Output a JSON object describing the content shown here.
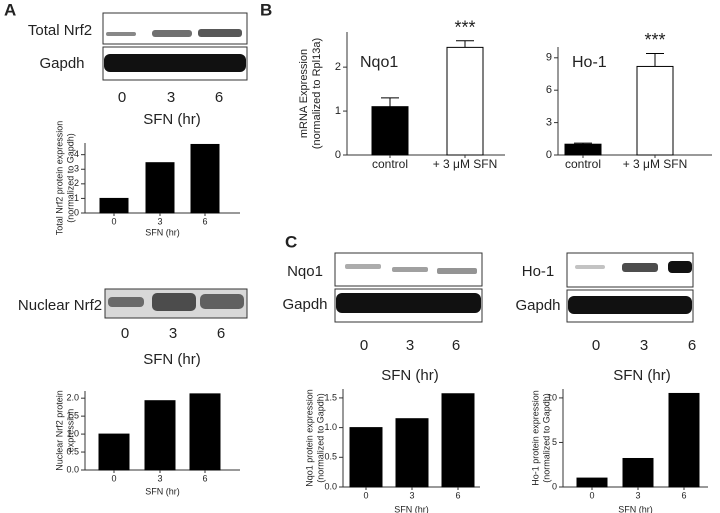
{
  "panel_labels": [
    "A",
    "B",
    "C"
  ],
  "blots": [
    {
      "labels": [
        "Total Nrf2",
        "Gapdh"
      ],
      "lanes": [
        "0",
        "3",
        "6"
      ],
      "xlabel": "SFN (hr)"
    },
    {
      "labels": [
        "Nuclear Nrf2"
      ],
      "lanes": [
        "0",
        "3",
        "6"
      ],
      "xlabel": "SFN (hr)"
    },
    {
      "labels": [
        "Nqo1",
        "Gapdh"
      ],
      "lanes": [
        "0",
        "3",
        "6"
      ],
      "xlabel": "SFN (hr)"
    },
    {
      "labels": [
        "Ho-1",
        "Gapdh"
      ],
      "lanes": [
        "0",
        "3",
        "6"
      ],
      "xlabel": "SFN (hr)"
    }
  ],
  "chart_data": [
    {
      "type": "bar",
      "categories": [
        "0",
        "3",
        "6"
      ],
      "values": [
        1,
        3.45,
        4.7
      ],
      "color": "#000000",
      "ylabel": [
        "Total Nrf2 protein expression",
        "(normalized to Gapdh)"
      ],
      "xlabel": "SFN (hr)",
      "ylim": [
        0,
        4.8
      ],
      "yticks": [
        0,
        1,
        2,
        3,
        4
      ]
    },
    {
      "type": "bar",
      "categories": [
        "0",
        "3",
        "6"
      ],
      "values": [
        1,
        1.93,
        2.12
      ],
      "color": "#000000",
      "ylabel": [
        "Nuclear Nrf2 protein",
        "expression"
      ],
      "xlabel": "SFN (hr)",
      "ylim": [
        0,
        2.2
      ],
      "yticks": [
        {
          "value": 0,
          "label": "0.0"
        },
        0.5,
        {
          "value": 1,
          "label": "1.0"
        },
        1.5,
        {
          "value": 2,
          "label": "2.0"
        }
      ]
    },
    {
      "type": "bar",
      "title": "Nqo1",
      "annotation": "***",
      "categories": [
        "control",
        "+ 3 μM SFN"
      ],
      "values": [
        1.1,
        2.45
      ],
      "errors": [
        0.2,
        0.15
      ],
      "colors": [
        "#000000",
        "#ffffff"
      ],
      "ylabel": [
        "mRNA Expression",
        "(normalized to Rpl13a)"
      ],
      "ylim": [
        0,
        2.8
      ],
      "yticks": [
        0,
        1,
        2
      ]
    },
    {
      "type": "bar",
      "title": "Ho-1",
      "annotation": "***",
      "categories": [
        "control",
        "+ 3 μM SFN"
      ],
      "values": [
        1.0,
        8.2
      ],
      "errors": [
        0.1,
        1.2
      ],
      "colors": [
        "#000000",
        "#ffffff"
      ],
      "ylim": [
        0,
        10
      ],
      "yticks": [
        0,
        3,
        6,
        9
      ]
    },
    {
      "type": "bar",
      "categories": [
        "0",
        "3",
        "6"
      ],
      "values": [
        1.0,
        1.15,
        1.57
      ],
      "color": "#000000",
      "ylabel": [
        "Nqo1 protein expression",
        "(normalized to Gapdh)"
      ],
      "xlabel": "SFN (hr)",
      "ylim": [
        0,
        1.65
      ],
      "yticks": [
        {
          "value": 0,
          "label": "0.0"
        },
        0.5,
        {
          "value": 1,
          "label": "1.0"
        },
        1.5
      ]
    },
    {
      "type": "bar",
      "categories": [
        "0",
        "3",
        "6"
      ],
      "values": [
        1.0,
        3.2,
        10.5
      ],
      "color": "#000000",
      "ylabel": [
        "Ho-1 protein expression",
        "(normalized to Gapdh)"
      ],
      "xlabel": "SFN (hr)",
      "ylim": [
        0,
        11
      ],
      "yticks": [
        0,
        5,
        10
      ]
    }
  ]
}
